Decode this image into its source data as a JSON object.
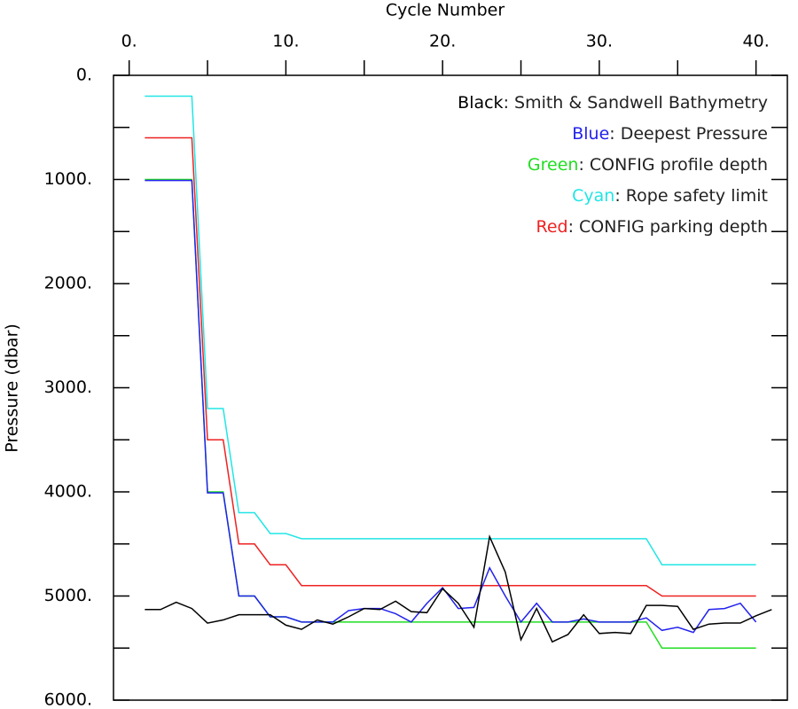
{
  "chart_data": {
    "type": "line",
    "x_label": "Cycle Number",
    "y_label": "Pressure (dbar)",
    "xlim": [
      -1,
      42
    ],
    "ylim": [
      0,
      6000
    ],
    "y_inverted": true,
    "x_axis_position": "top",
    "xticks": [
      {
        "value": 0,
        "label": "0."
      },
      {
        "value": 10,
        "label": "10."
      },
      {
        "value": 20,
        "label": "20."
      },
      {
        "value": 30,
        "label": "30."
      },
      {
        "value": 40,
        "label": "40."
      }
    ],
    "xminorticks": [
      5,
      15,
      25,
      35
    ],
    "yticks": [
      {
        "value": 0,
        "label": "0."
      },
      {
        "value": 1000,
        "label": "1000."
      },
      {
        "value": 2000,
        "label": "2000."
      },
      {
        "value": 3000,
        "label": "3000."
      },
      {
        "value": 4000,
        "label": "4000."
      },
      {
        "value": 5000,
        "label": "5000."
      },
      {
        "value": 6000,
        "label": "6000."
      }
    ],
    "yminorticks": [
      500,
      1500,
      2500,
      3500,
      4500,
      5500
    ],
    "legend": "upper right",
    "x": [
      1,
      2,
      3,
      4,
      5,
      6,
      7,
      8,
      9,
      10,
      11,
      12,
      13,
      14,
      15,
      16,
      17,
      18,
      19,
      20,
      21,
      22,
      23,
      24,
      25,
      26,
      27,
      28,
      29,
      30,
      31,
      32,
      33,
      34,
      35,
      36,
      37,
      38,
      39,
      40
    ],
    "series": [
      {
        "name": "Black: Smith & Sandwell Bathymetry",
        "color": "#000000",
        "x": [
          1,
          2,
          3,
          4,
          5,
          6,
          7,
          8,
          9,
          10,
          11,
          12,
          13,
          14,
          15,
          16,
          17,
          18,
          19,
          20,
          21,
          22,
          23,
          24,
          25,
          26,
          27,
          28,
          29,
          30,
          31,
          32,
          33,
          34,
          35,
          36,
          37,
          38,
          39,
          40,
          41
        ],
        "values": [
          5130,
          5130,
          5060,
          5120,
          5260,
          5230,
          5180,
          5180,
          5180,
          5280,
          5320,
          5230,
          5270,
          5200,
          5120,
          5130,
          5050,
          5150,
          5160,
          4930,
          5070,
          5300,
          4430,
          4770,
          5420,
          5120,
          5440,
          5370,
          5180,
          5360,
          5350,
          5360,
          5090,
          5090,
          5100,
          5320,
          5270,
          5260,
          5260,
          5190,
          5130
        ]
      },
      {
        "name": "Blue: Deepest Pressure",
        "color": "#2222ee",
        "values": [
          1010,
          1010,
          1010,
          1010,
          4010,
          4010,
          5000,
          5000,
          5200,
          5200,
          5250,
          5250,
          5250,
          5140,
          5120,
          5120,
          5170,
          5250,
          5070,
          4920,
          5120,
          5110,
          4730,
          5000,
          5250,
          5070,
          5250,
          5250,
          5220,
          5250,
          5250,
          5250,
          5210,
          5330,
          5300,
          5350,
          5130,
          5120,
          5070,
          5250
        ]
      },
      {
        "name": "Green: CONFIG profile depth",
        "color": "#22dd22",
        "values": [
          1000,
          1000,
          1000,
          1000,
          4000,
          4000,
          5000,
          5000,
          5200,
          5200,
          5250,
          5250,
          5250,
          5250,
          5250,
          5250,
          5250,
          5250,
          5250,
          5250,
          5250,
          5250,
          5250,
          5250,
          5250,
          5250,
          5250,
          5250,
          5250,
          5250,
          5250,
          5250,
          5250,
          5500,
          5500,
          5500,
          5500,
          5500,
          5500,
          5500
        ]
      },
      {
        "name": "Cyan: Rope safety limit",
        "color": "#22e5e5",
        "values": [
          200,
          200,
          200,
          200,
          3200,
          3200,
          4200,
          4200,
          4400,
          4400,
          4450,
          4450,
          4450,
          4450,
          4450,
          4450,
          4450,
          4450,
          4450,
          4450,
          4450,
          4450,
          4450,
          4450,
          4450,
          4450,
          4450,
          4450,
          4450,
          4450,
          4450,
          4450,
          4450,
          4700,
          4700,
          4700,
          4700,
          4700,
          4700,
          4700
        ]
      },
      {
        "name": "Red: CONFIG parking depth",
        "color": "#ee2222",
        "values": [
          600,
          600,
          600,
          600,
          3500,
          3500,
          4500,
          4500,
          4700,
          4700,
          4900,
          4900,
          4900,
          4900,
          4900,
          4900,
          4900,
          4900,
          4900,
          4900,
          4900,
          4900,
          4900,
          4900,
          4900,
          4900,
          4900,
          4900,
          4900,
          4900,
          4900,
          4900,
          4900,
          5000,
          5000,
          5000,
          5000,
          5000,
          5000,
          5000
        ]
      }
    ]
  }
}
